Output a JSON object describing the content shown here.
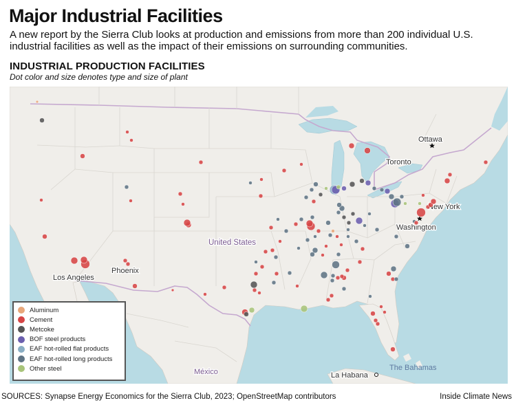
{
  "header": {
    "title": "Major Industrial Facilities",
    "subtitle": "A new report by the Sierra Club looks at production and emissions from more than 200 individual U.S. industrial facilities as well as the impact of their emissions on surrounding communities.",
    "section_title": "INDUSTRIAL PRODUCTION FACILITIES",
    "section_subtitle": "Dot color and size denotes type and size of plant"
  },
  "map": {
    "place_labels": {
      "ottawa": "Ottawa",
      "toronto": "Toronto",
      "new_york": "New York",
      "washington": "Washington",
      "united_states": "United States",
      "los_angeles": "Los Angeles",
      "phoenix": "Phoenix",
      "mexico": "México",
      "la_habana": "La Habana",
      "the_bahamas": "The Bahamas"
    },
    "colors": {
      "water": "#b8dbe4",
      "land": "#f0eeea",
      "border": "#c5a8cf"
    }
  },
  "legend": {
    "items": [
      {
        "label": "Aluminum",
        "color": "#e8a77a"
      },
      {
        "label": "Cement",
        "color": "#d64545"
      },
      {
        "label": "Metcoke",
        "color": "#555555"
      },
      {
        "label": "BOF steel products",
        "color": "#6b5fae"
      },
      {
        "label": "EAF hot-rolled flat products",
        "color": "#8aaec4"
      },
      {
        "label": "EAF hot-rolled long products",
        "color": "#5f7484"
      },
      {
        "label": "Other steel",
        "color": "#a8c47a"
      }
    ]
  },
  "footer": {
    "sources": "SOURCES: Synapse Energy Economics for the Sierra Club, 2023; OpenStreetMap contributors",
    "credit": "Inside Climate News"
  }
}
